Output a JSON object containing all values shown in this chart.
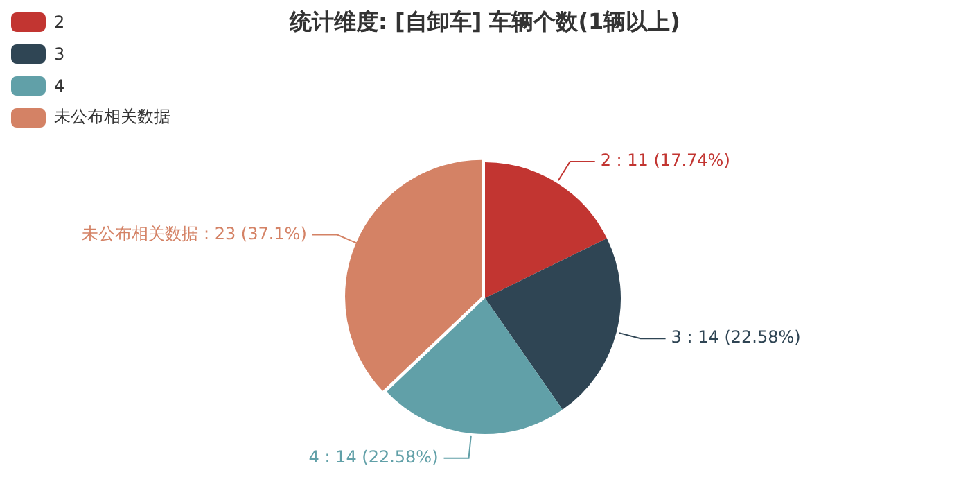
{
  "chart_data": {
    "type": "pie",
    "title": "统计维度: [自卸车] 车辆个数(1辆以上)",
    "categories": [
      "2",
      "3",
      "4",
      "未公布相关数据"
    ],
    "values": [
      11,
      14,
      14,
      23
    ],
    "colors": [
      "#c23531",
      "#2f4554",
      "#61a0a8",
      "#d48265"
    ],
    "value_labels": [
      "2 : 11 (17.74%)",
      "3 : 14 (22.58%)",
      "4 : 14 (22.58%)",
      "未公布相关数据 : 23 (37.1%)"
    ],
    "legend": "top left"
  }
}
